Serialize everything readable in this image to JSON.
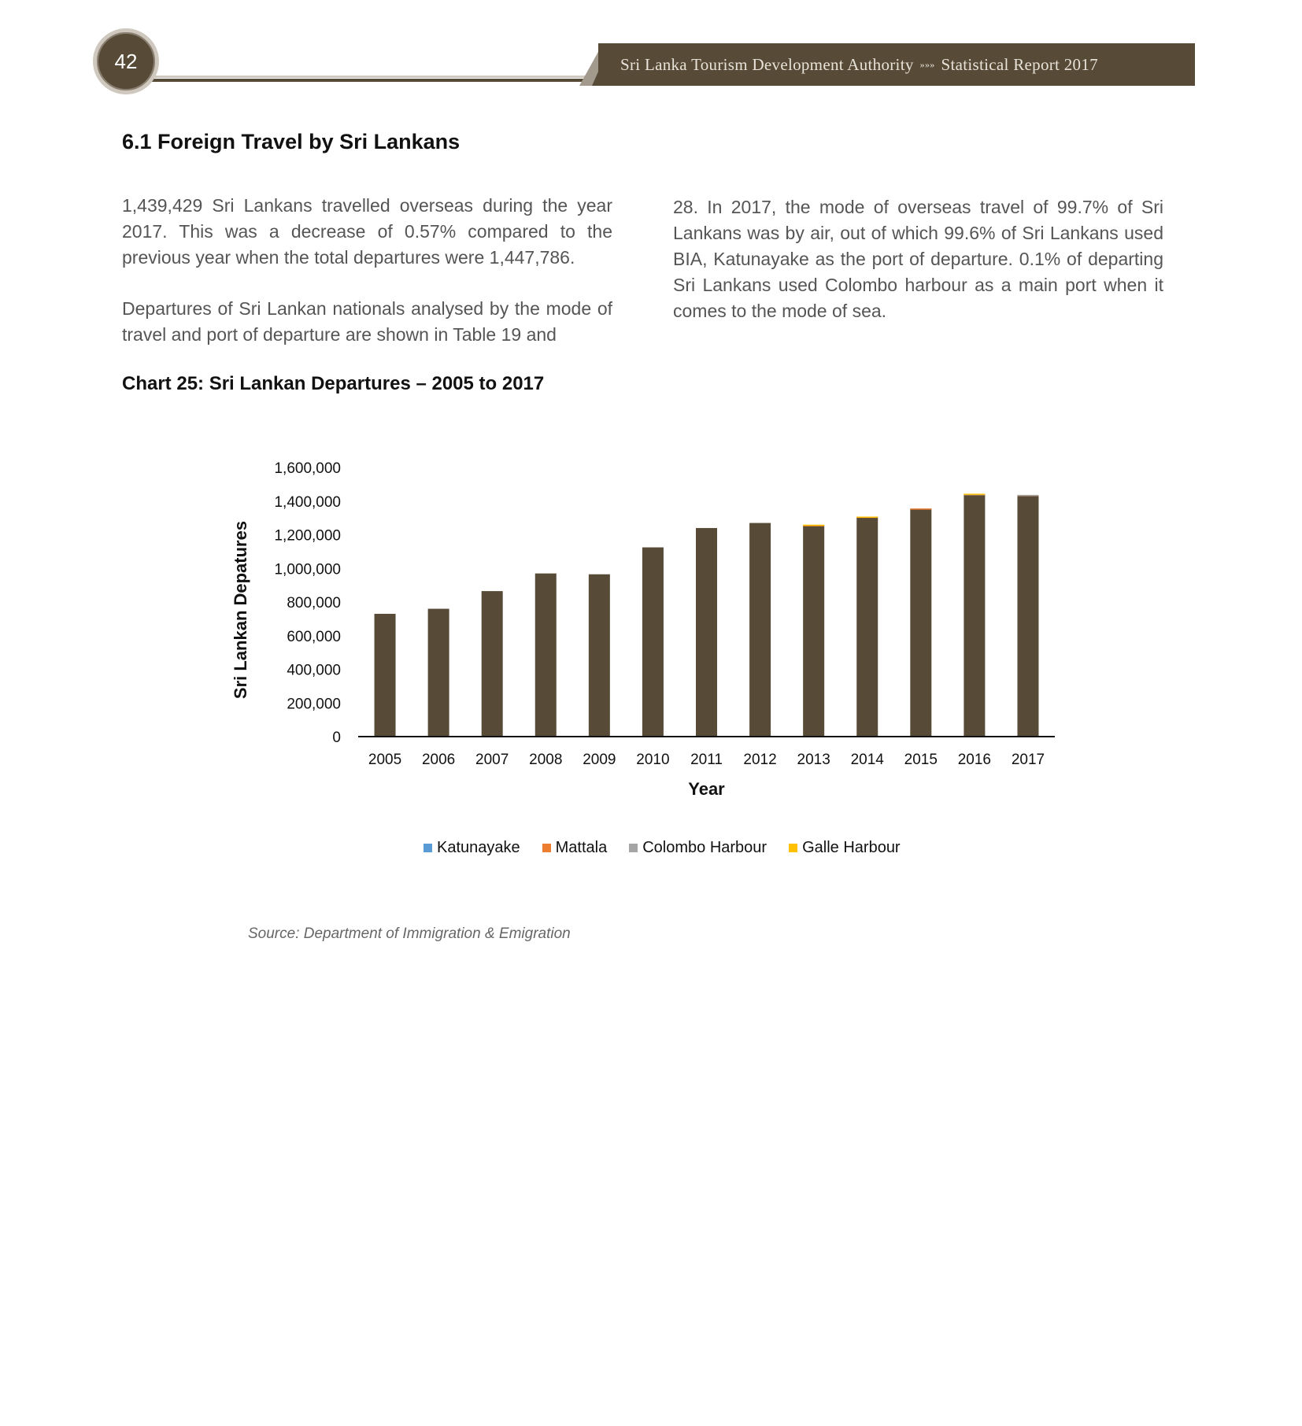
{
  "header": {
    "page_number": "42",
    "org": "Sri Lanka Tourism Development Authority",
    "separator": "»»»",
    "report": "Statistical Report 2017"
  },
  "section": {
    "title": "6.1  Foreign Travel by Sri Lankans",
    "paragraph_1": "1,439,429 Sri Lankans travelled overseas during the year 2017. This was a decrease of 0.57% compared to the previous year when the total departures were 1,447,786.",
    "paragraph_2": "Departures of Sri Lankan nationals analysed by the mode of travel and port of departure are shown in Table 19 and",
    "paragraph_3": "28. In 2017, the mode of overseas travel of 99.7% of Sri Lankans was by air, out of which 99.6% of Sri Lankans used BIA, Katunayake as the port of departure. 0.1% of departing Sri Lankans used Colombo harbour as a main port when it comes to the mode of sea."
  },
  "chart_caption": "Chart 25: Sri Lankan Departures – 2005 to 2017",
  "chart_data": {
    "type": "bar",
    "stacked": true,
    "categories": [
      "2005",
      "2006",
      "2007",
      "2008",
      "2009",
      "2010",
      "2011",
      "2012",
      "2013",
      "2014",
      "2015",
      "2016",
      "2017"
    ],
    "series": [
      {
        "name": "Katunayake",
        "color": "#574b38",
        "values": [
          730000,
          760000,
          865000,
          970000,
          965000,
          1125000,
          1240000,
          1270000,
          1255000,
          1305000,
          1355000,
          1440000,
          1435000
        ]
      },
      {
        "name": "Mattala",
        "color": "#ed7d31",
        "values": [
          0,
          0,
          0,
          0,
          0,
          0,
          0,
          0,
          2000,
          2000,
          1000,
          1000,
          1000
        ]
      },
      {
        "name": "Colombo Harbour",
        "color": "#a5a5a5",
        "values": [
          0,
          0,
          0,
          0,
          0,
          0,
          0,
          0,
          0,
          0,
          0,
          1000,
          1000
        ]
      },
      {
        "name": "Galle Harbour",
        "color": "#ffc000",
        "values": [
          0,
          0,
          0,
          0,
          0,
          0,
          0,
          0,
          3000,
          1000,
          0,
          2000,
          0
        ]
      }
    ],
    "legend_colors": [
      "#5b9bd5",
      "#ed7d31",
      "#a5a5a5",
      "#ffc000"
    ],
    "ylim": [
      0,
      1600000
    ],
    "yticks": [
      0,
      200000,
      400000,
      600000,
      800000,
      1000000,
      1200000,
      1400000,
      1600000
    ],
    "ytick_labels": [
      "0",
      "200,000",
      "400,000",
      "600,000",
      "800,000",
      "1,000,000",
      "1,200,000",
      "1,400,000",
      "1,600,000"
    ],
    "xlabel": "Year",
    "ylabel": "Sri Lankan Depatures",
    "legend_position": "bottom"
  },
  "source": "Source: Department of Immigration & Emigration"
}
